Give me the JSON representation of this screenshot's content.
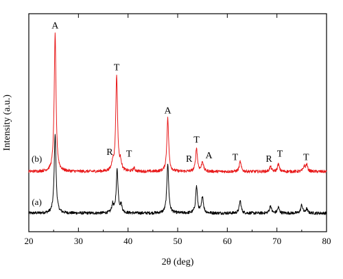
{
  "chart_data": {
    "type": "line",
    "xlabel": "2θ (deg)",
    "ylabel": "Intensity (a.u.)",
    "xlim": [
      20,
      80
    ],
    "ylim": [
      0,
      2.2
    ],
    "x_ticks": [
      20,
      30,
      40,
      50,
      60,
      70,
      80
    ],
    "x_tick_labels": [
      "20",
      "30",
      "40",
      "50",
      "60",
      "70",
      "80"
    ],
    "grid": false,
    "legend": "none",
    "y_tick_labels_shown": false,
    "series": [
      {
        "name": "(a)",
        "color": "#000000",
        "baseline": 0.0,
        "noise": 0.018,
        "peaks": [
          {
            "x": 25.3,
            "height": 0.95
          },
          {
            "x": 36.9,
            "height": 0.1
          },
          {
            "x": 37.8,
            "height": 0.52
          },
          {
            "x": 38.6,
            "height": 0.09
          },
          {
            "x": 48.0,
            "height": 0.6
          },
          {
            "x": 53.8,
            "height": 0.32
          },
          {
            "x": 55.0,
            "height": 0.2
          },
          {
            "x": 62.6,
            "height": 0.15
          },
          {
            "x": 68.7,
            "height": 0.09
          },
          {
            "x": 70.3,
            "height": 0.07
          },
          {
            "x": 75.0,
            "height": 0.1
          },
          {
            "x": 76.0,
            "height": 0.05
          }
        ]
      },
      {
        "name": "(b)",
        "color": "#e8191a",
        "baseline": 0.5,
        "noise": 0.018,
        "peaks": [
          {
            "x": 25.3,
            "height": 1.65
          },
          {
            "x": 36.9,
            "height": 0.1
          },
          {
            "x": 37.7,
            "height": 1.15
          },
          {
            "x": 38.5,
            "height": 0.1
          },
          {
            "x": 41.2,
            "height": 0.04
          },
          {
            "x": 48.0,
            "height": 0.64
          },
          {
            "x": 53.8,
            "height": 0.28
          },
          {
            "x": 55.0,
            "height": 0.12
          },
          {
            "x": 62.6,
            "height": 0.12
          },
          {
            "x": 68.7,
            "height": 0.06
          },
          {
            "x": 70.3,
            "height": 0.09
          },
          {
            "x": 75.5,
            "height": 0.06
          },
          {
            "x": 76.0,
            "height": 0.08
          }
        ]
      }
    ],
    "annotations": [
      {
        "text": "A",
        "x": 25.3,
        "y": 2.22
      },
      {
        "text": "T",
        "x": 37.7,
        "y": 1.72
      },
      {
        "text": "R",
        "x": 36.3,
        "y": 0.7
      },
      {
        "text": "T",
        "x": 40.2,
        "y": 0.68
      },
      {
        "text": "A",
        "x": 48.0,
        "y": 1.2
      },
      {
        "text": "R",
        "x": 52.3,
        "y": 0.62
      },
      {
        "text": "T",
        "x": 53.8,
        "y": 0.85
      },
      {
        "text": "A",
        "x": 56.3,
        "y": 0.66
      },
      {
        "text": "T",
        "x": 61.6,
        "y": 0.64
      },
      {
        "text": "R",
        "x": 68.4,
        "y": 0.62
      },
      {
        "text": "T",
        "x": 70.6,
        "y": 0.68
      },
      {
        "text": "T",
        "x": 75.9,
        "y": 0.64
      }
    ],
    "curve_labels": [
      {
        "text": "(b)",
        "x": 21.6,
        "y": 0.62
      },
      {
        "text": "(a)",
        "x": 21.6,
        "y": 0.1
      }
    ]
  }
}
